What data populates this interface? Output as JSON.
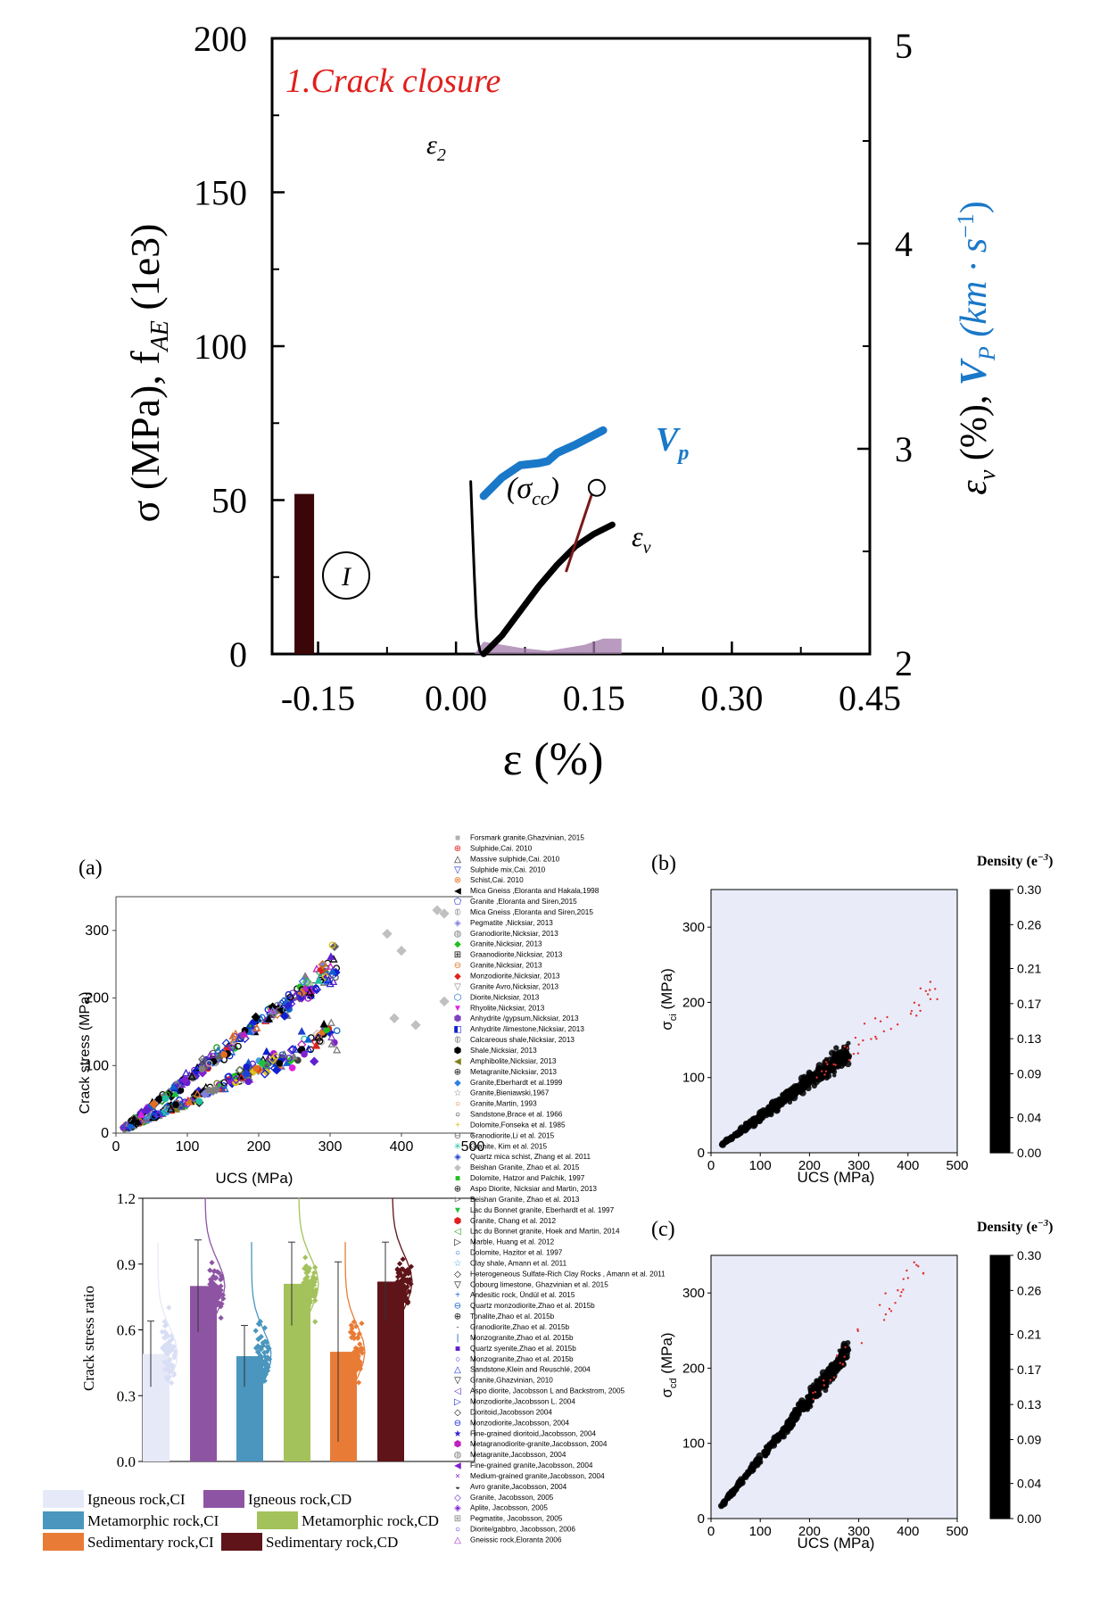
{
  "top_chart": {
    "annotation_title": "1.Crack closure",
    "label_eps2": "ε",
    "label_eps2_sub": "2",
    "label_sigma_cc": "(σ",
    "label_sigma_cc_sub": "cc",
    "label_sigma_cc_close": ")",
    "label_epsv": "ε",
    "label_epsv_sub": "v",
    "label_vp": "V",
    "label_vp_sub": "p",
    "label_region": "I",
    "ylabel_left": "σ (MPa), f",
    "ylabel_left_sub": "AE",
    "ylabel_left_tail": " (1e3)",
    "ylabel_right_a": "ε",
    "ylabel_right_a_sub": "v",
    "ylabel_right_a_tail": " (%), ",
    "ylabel_right_b": "V",
    "ylabel_right_b_sub": "P",
    "ylabel_right_b_tail": " (km · s",
    "ylabel_right_b_sup": "−1",
    "ylabel_right_b_close": ")",
    "xlabel": "ε (%)",
    "xticks": [
      "-0.15",
      "0.00",
      "0.15",
      "0.30",
      "0.45"
    ],
    "yticks_left": [
      "0",
      "50",
      "100",
      "150",
      "200"
    ],
    "yticks_right": [
      "2",
      "3",
      "4",
      "5"
    ],
    "colors": {
      "vp": "#1a78c8",
      "title": "#e0201c",
      "bar": "#3a0608",
      "curve": "#000000",
      "ae": "#a07aa8"
    }
  },
  "panel_a": {
    "label": "(a)",
    "xlabel": "UCS (MPa)",
    "ylabel": "Crack stress (MPa)",
    "xticks": [
      "0",
      "100",
      "200",
      "300",
      "400",
      "500"
    ],
    "yticks": [
      "0",
      "100",
      "200",
      "300"
    ],
    "ratio_ylabel": "Crack stress ratio",
    "ratio_yticks": [
      "0.0",
      "0.3",
      "0.6",
      "0.9",
      "1.2"
    ]
  },
  "legend_groups": [
    {
      "label": "Igneous rock,CI",
      "color": "#e6eaf8"
    },
    {
      "label": "Igneous rock,CD",
      "color": "#8e54a4"
    },
    {
      "label": "Metamorphic rock,CI",
      "color": "#4a96be"
    },
    {
      "label": "Metamorphic rock,CD",
      "color": "#a4c25c"
    },
    {
      "label": "Sedimentary rock,CI",
      "color": "#e87c36"
    },
    {
      "label": "Sedimentary rock,CD",
      "color": "#5e1418"
    }
  ],
  "legend_sources": [
    {
      "sym": "■",
      "color": "#b0b0b0",
      "text": "Forsmark granite,Ghazvinian, 2015"
    },
    {
      "sym": "⊕",
      "color": "#e02020",
      "text": "Sulphide,Cai. 2010"
    },
    {
      "sym": "△",
      "color": "#000000",
      "text": "Massive sulphide,Cai. 2010"
    },
    {
      "sym": "▽",
      "color": "#1020d0",
      "text": "Sulphide mix,Cai. 2010"
    },
    {
      "sym": "⊗",
      "color": "#e07020",
      "text": "Schist,Cai. 2010"
    },
    {
      "sym": "◀",
      "color": "#000000",
      "text": "Mica Gneiss ,Eloranta and Hakala,1998"
    },
    {
      "sym": "⬠",
      "color": "#1020d0",
      "text": "Granite ,Eloranta and Siren,2015"
    },
    {
      "sym": "⦶",
      "color": "#808080",
      "text": "Mica Gneiss ,Eloranta and Siren,2015"
    },
    {
      "sym": "◈",
      "color": "#8080e0",
      "text": "Pegmatite ,Nicksiar, 2013"
    },
    {
      "sym": "◍",
      "color": "#808080",
      "text": "Granodiorite,Nicksiar, 2013"
    },
    {
      "sym": "◆",
      "color": "#20c020",
      "text": "Granite,Nicksiar, 2013"
    },
    {
      "sym": "⊞",
      "color": "#000000",
      "text": "Graanodiorite,Nicksiar, 2013"
    },
    {
      "sym": "⊖",
      "color": "#e07020",
      "text": "Granite,Nicksiar, 2013"
    },
    {
      "sym": "◆",
      "color": "#e02020",
      "text": "Monzodiorite,Nicksiar, 2013"
    },
    {
      "sym": "▽",
      "color": "#808080",
      "text": "Granite Avro,Nicksiar, 2013"
    },
    {
      "sym": "⬡",
      "color": "#1060d0",
      "text": "Diorite,Nicksiar, 2013"
    },
    {
      "sym": "▼",
      "color": "#e020e0",
      "text": "Rhyolite,Nicksiar, 2013"
    },
    {
      "sym": "⬢",
      "color": "#8040c0",
      "text": "Anhydrite /gypsum,Nicksiar, 2013"
    },
    {
      "sym": "◧",
      "color": "#1020d0",
      "text": "Anhydrite /limestone,Nicksiar, 2013"
    },
    {
      "sym": "⦶",
      "color": "#606060",
      "text": "Calcareous shale,Nicksiar, 2013"
    },
    {
      "sym": "⬢",
      "color": "#000000",
      "text": "Shale,Nicksiar, 2013"
    },
    {
      "sym": "◀",
      "color": "#808020",
      "text": "Amphibolite,Nicksiar, 2013"
    },
    {
      "sym": "⊕",
      "color": "#000000",
      "text": "Metagranite,Nicksiar, 2013"
    },
    {
      "sym": "◆",
      "color": "#3080e0",
      "text": "Granite,Eberhardt et al.1999"
    },
    {
      "sym": "☆",
      "color": "#808080",
      "text": "Granite,Bieniawski,1967"
    },
    {
      "sym": "○",
      "color": "#e07020",
      "text": "Granite,Martin, 1993"
    },
    {
      "sym": "○",
      "color": "#000000",
      "text": "Sandstone,Brace et al. 1966"
    },
    {
      "sym": "+",
      "color": "#e0c020",
      "text": "Dolomite,Fonseka et al. 1985"
    },
    {
      "sym": "⊖",
      "color": "#606060",
      "text": "Granodiorite,Li et al. 2015"
    },
    {
      "sym": "✳",
      "color": "#20c0a0",
      "text": "Granite, Kim et al. 2015"
    },
    {
      "sym": "◈",
      "color": "#2040d0",
      "text": "Quartz mica schist, Zhang et al. 2011"
    },
    {
      "sym": "◆",
      "color": "#c0c0c0",
      "text": "Beishan Granite, Zhao et al. 2015"
    },
    {
      "sym": "■",
      "color": "#20c020",
      "text": "Dolomite, Hatzor and Palchik, 1997"
    },
    {
      "sym": "⊕",
      "color": "#000000",
      "text": "Aspo Diorite, Nicksiar and Martin, 2013"
    },
    {
      "sym": "⊳",
      "color": "#808080",
      "text": "Beishan Granite, Zhao et al. 2013"
    },
    {
      "sym": "▼",
      "color": "#20c040",
      "text": "Lac du Bonnet granite, Eberhardt et al. 1997"
    },
    {
      "sym": "⬢",
      "color": "#e02020",
      "text": "Granite, Chang et al. 2012"
    },
    {
      "sym": "◁",
      "color": "#20a020",
      "text": "Lac du Bonnet granite, Hoek and Martin, 2014"
    },
    {
      "sym": "▷",
      "color": "#000000",
      "text": "Marble, Huang et al. 2012"
    },
    {
      "sym": "○",
      "color": "#1060d0",
      "text": "Dolomite, Hazitor et al. 1997"
    },
    {
      "sym": "☆",
      "color": "#40a0e0",
      "text": "Clay shale, Amann et al. 2011"
    },
    {
      "sym": "◇",
      "color": "#000000",
      "text": "Heterogeneous Sulfate-Rich Clay Rocks , Amann et al. 2011"
    },
    {
      "sym": "▽",
      "color": "#000000",
      "text": "Cobourg limestone, Ghazvinian et al. 2015"
    },
    {
      "sym": "+",
      "color": "#1060d0",
      "text": "Andesitic rock, Ündül et al. 2015"
    },
    {
      "sym": "⊖",
      "color": "#1060d0",
      "text": "Quartz monzodiorite,Zhao et al. 2015b"
    },
    {
      "sym": "⊕",
      "color": "#000000",
      "text": "Tonalite,Zhao et al. 2015b"
    },
    {
      "sym": "-",
      "color": "#606060",
      "text": "Granodiorite,Zhao et al. 2015b"
    },
    {
      "sym": "|",
      "color": "#1060d0",
      "text": "Monzogranite,Zhao et al. 2015b"
    },
    {
      "sym": "■",
      "color": "#6020d0",
      "text": "Quartz syenite,Zhao et al. 2015b"
    },
    {
      "sym": "○",
      "color": "#6020d0",
      "text": "Monzogranite,Zhao et al. 2015b"
    },
    {
      "sym": "△",
      "color": "#1020d0",
      "text": "Sandstone,Klein and Reuschlé, 2004"
    },
    {
      "sym": "▽",
      "color": "#000000",
      "text": "Granite,Ghazvinian, 2010"
    },
    {
      "sym": "◁",
      "color": "#6020d0",
      "text": "Aspo diorite, Jacobsson L and Backstrom, 2005"
    },
    {
      "sym": "▷",
      "color": "#1020d0",
      "text": "Monzodiorite,Jacobsson L. 2004"
    },
    {
      "sym": "◇",
      "color": "#000000",
      "text": "Dioritoid,Jacobsson 2004"
    },
    {
      "sym": "⊖",
      "color": "#1020d0",
      "text": "Monzodiorite,Jacobsson, 2004"
    },
    {
      "sym": "★",
      "color": "#3020d0",
      "text": "Fine-grained dioritoid,Jacobsson, 2004"
    },
    {
      "sym": "⬢",
      "color": "#c020c0",
      "text": "Metagranodiorite-granite,Jacobsson, 2004"
    },
    {
      "sym": "◍",
      "color": "#808080",
      "text": "Metagranite,Jacobsson, 2004"
    },
    {
      "sym": "◀",
      "color": "#8020d0",
      "text": "Fine-grained granite,Jacobsson, 2004"
    },
    {
      "sym": "×",
      "color": "#8020d0",
      "text": "Medium-grained granite,Jacobsson, 2004"
    },
    {
      "sym": "◒",
      "color": "#404040",
      "text": "Avro granite,Jacobsson, 2004"
    },
    {
      "sym": "◇",
      "color": "#6020d0",
      "text": "Granite, Jacobsson, 2005"
    },
    {
      "sym": "◈",
      "color": "#8020d0",
      "text": "Aplite, Jacobsson, 2005"
    },
    {
      "sym": "⊞",
      "color": "#808080",
      "text": "Pegmatite, Jacobsson, 2005"
    },
    {
      "sym": "○",
      "color": "#3020d0",
      "text": "Diorite/gabbro, Jacobsson, 2006"
    },
    {
      "sym": "△",
      "color": "#a020d0",
      "text": "Gneissic rock,Eloranta 2006"
    }
  ],
  "panel_b": {
    "label": "(b)",
    "xlabel": "UCS (MPa)",
    "ylabel": "σ",
    "ylabel_sub": "ci",
    "ylabel_tail": " (MPa)",
    "xticks": [
      "0",
      "100",
      "200",
      "300",
      "400",
      "500"
    ],
    "yticks": [
      "0",
      "100",
      "200",
      "300"
    ],
    "cbar_title": "Density (e",
    "cbar_title_sup": "−3",
    "cbar_title_close": ")",
    "cbar_ticks": [
      "0.30",
      "0.26",
      "0.21",
      "0.17",
      "0.13",
      "0.09",
      "0.04",
      "0.00"
    ]
  },
  "panel_c": {
    "label": "(c)",
    "xlabel": "UCS (MPa)",
    "ylabel": "σ",
    "ylabel_sub": "cd",
    "ylabel_tail": " (MPa)",
    "xticks": [
      "0",
      "100",
      "200",
      "300",
      "400",
      "500"
    ],
    "yticks": [
      "0",
      "100",
      "200",
      "300"
    ],
    "cbar_title": "Density (e",
    "cbar_title_sup": "−3",
    "cbar_title_close": ")",
    "cbar_ticks": [
      "0.30",
      "0.26",
      "0.21",
      "0.17",
      "0.13",
      "0.09",
      "0.04",
      "0.00"
    ]
  },
  "chart_data": [
    {
      "type": "line",
      "xlim": [
        -0.2,
        0.45
      ],
      "ylim": [
        0,
        200
      ],
      "y2lim": [
        2,
        5
      ],
      "series": [
        {
          "name": "ε2",
          "x": [
            0.016,
            0.018,
            0.02,
            0.022,
            0.024,
            0.026,
            0.028
          ],
          "y": [
            56,
            40,
            25,
            12,
            4,
            1,
            0
          ]
        },
        {
          "name": "εv",
          "x": [
            0.03,
            0.05,
            0.07,
            0.09,
            0.11,
            0.13,
            0.15,
            0.17
          ],
          "y": [
            0,
            6,
            14,
            22,
            29,
            35,
            39,
            42
          ]
        },
        {
          "name": "σcc",
          "x": [
            0.12,
            0.15
          ],
          "y": [
            27,
            54
          ]
        },
        {
          "name": "Vp",
          "axis": "right",
          "x": [
            0.03,
            0.05,
            0.07,
            0.09,
            0.1,
            0.11,
            0.13,
            0.16
          ],
          "y": [
            2.77,
            2.86,
            2.92,
            2.93,
            2.94,
            2.98,
            3.02,
            3.09
          ]
        }
      ],
      "bar": {
        "x": -0.165,
        "value": 52
      },
      "ae_hist": [
        {
          "x": 0.03,
          "v": 4
        },
        {
          "x": 0.05,
          "v": 3
        },
        {
          "x": 0.07,
          "v": 2
        },
        {
          "x": 0.1,
          "v": 1
        },
        {
          "x": 0.12,
          "v": 2
        },
        {
          "x": 0.14,
          "v": 3
        },
        {
          "x": 0.16,
          "v": 5
        },
        {
          "x": 0.18,
          "v": 5
        }
      ],
      "sigma_cc_point": {
        "x": 0.153,
        "y": 54
      }
    },
    {
      "type": "scatter",
      "xlim": [
        0,
        500
      ],
      "ylim": [
        0,
        350
      ],
      "trend_ci": {
        "slope": 0.48
      },
      "trend_cd": {
        "slope": 0.8
      }
    },
    {
      "type": "bar",
      "ylim": [
        0,
        1.2
      ],
      "values": [
        0.49,
        0.8,
        0.48,
        0.81,
        0.5,
        0.82
      ],
      "errors": [
        0.15,
        0.21,
        0.14,
        0.19,
        0.41,
        0.18
      ]
    },
    {
      "type": "heatmap",
      "xlim": [
        0,
        500
      ],
      "ylim": [
        0,
        350
      ],
      "slope": 0.48,
      "clim": [
        0,
        0.3
      ]
    },
    {
      "type": "heatmap",
      "xlim": [
        0,
        500
      ],
      "ylim": [
        0,
        350
      ],
      "slope": 0.8,
      "clim": [
        0,
        0.3
      ]
    }
  ]
}
